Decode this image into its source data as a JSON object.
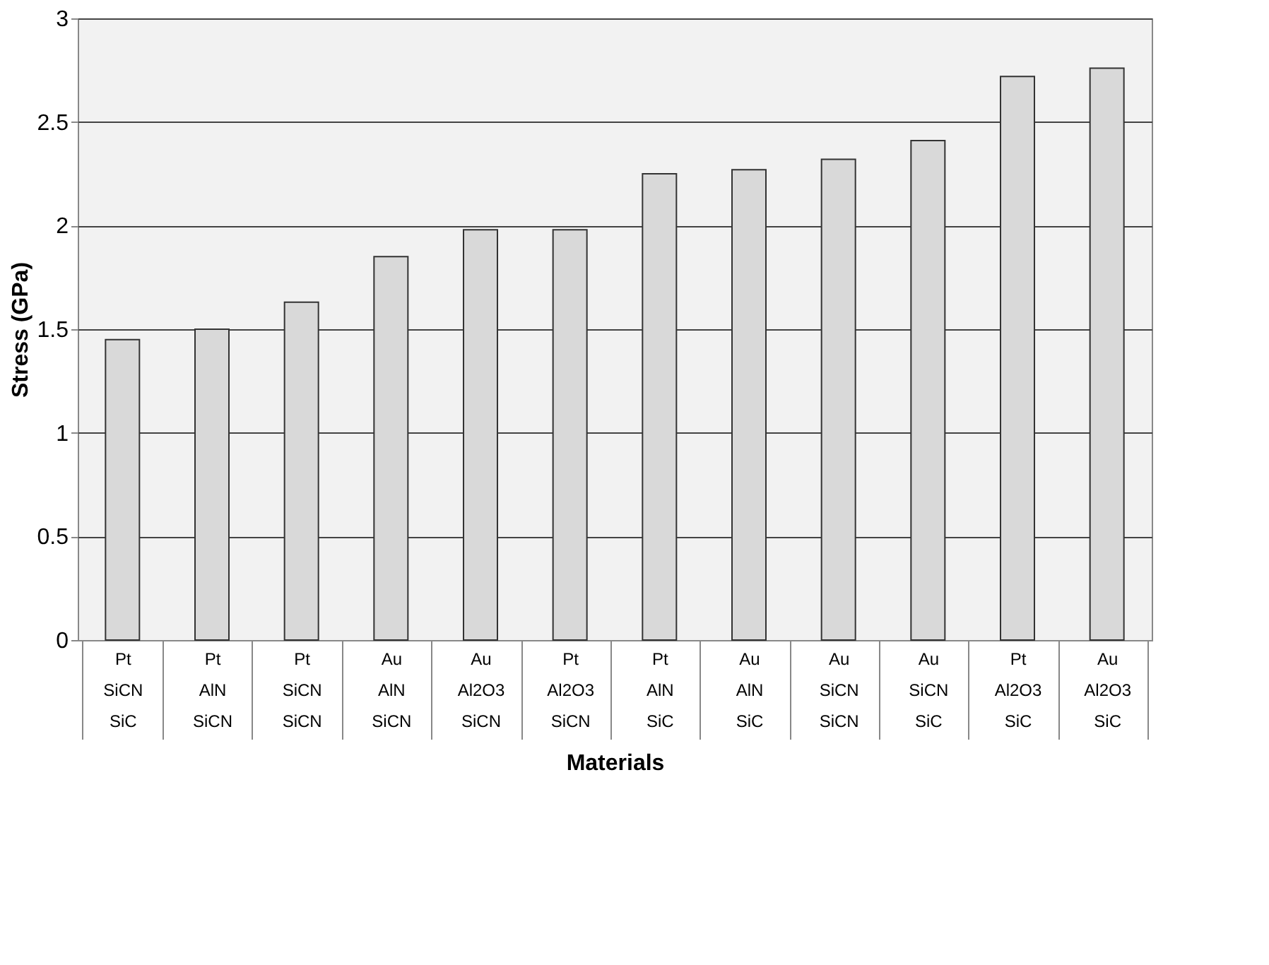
{
  "chart_data": {
    "type": "bar",
    "xlabel": "Materials",
    "ylabel": "Stress (GPa)",
    "categories": [
      "Pt\nSiCN\nSiC",
      "Pt\nAlN\nSiCN",
      "Pt\nSiCN\nSiCN",
      "Au\nAlN\nSiCN",
      "Au\nAl2O3\nSiCN",
      "Pt\nAl2O3\nSiCN",
      "Pt\nAlN\nSiC",
      "Au\nAlN\nSiC",
      "Au\nSiCN\nSiCN",
      "Au\nSiCN\nSiC",
      "Pt\nAl2O3\nSiC",
      "Au\nAl2O3\nSiC"
    ],
    "values": [
      1.45,
      1.5,
      1.63,
      1.85,
      1.98,
      1.98,
      2.25,
      2.27,
      2.32,
      2.41,
      2.72,
      2.76
    ],
    "color": "#d9d9d9",
    "ylim": [
      0,
      3
    ],
    "yticks": [
      0,
      0.5,
      1,
      1.5,
      2,
      2.5,
      3
    ],
    "grid": "y"
  }
}
